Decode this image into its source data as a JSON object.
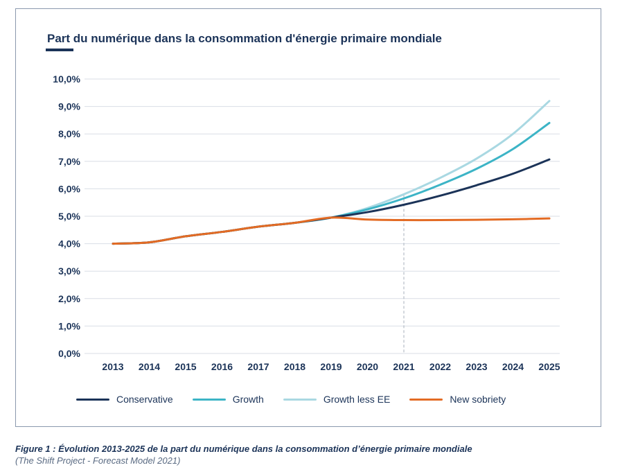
{
  "chart_data": {
    "type": "line",
    "title": "Part du numérique dans la consommation d'énergie primaire mondiale",
    "xlabel": "",
    "ylabel": "",
    "x": [
      "2013",
      "2014",
      "2015",
      "2016",
      "2017",
      "2018",
      "2019",
      "2020",
      "2021",
      "2022",
      "2023",
      "2024",
      "2025"
    ],
    "yticks": [
      "0,0%",
      "1,0%",
      "2,0%",
      "3,0%",
      "4,0%",
      "5,0%",
      "6,0%",
      "7,0%",
      "8,0%",
      "9,0%",
      "10,0%"
    ],
    "ylim": [
      0,
      10
    ],
    "grid": true,
    "reference_line_x": "2021",
    "legend_position": "bottom",
    "series": [
      {
        "name": "Growth less EE",
        "color": "#a9d8e2",
        "values": [
          4.0,
          4.05,
          4.27,
          4.43,
          4.62,
          4.76,
          4.95,
          5.3,
          5.8,
          6.4,
          7.1,
          8.0,
          9.2
        ]
      },
      {
        "name": "Growth",
        "color": "#3cb4c6",
        "values": [
          4.0,
          4.05,
          4.27,
          4.43,
          4.62,
          4.76,
          4.95,
          5.25,
          5.65,
          6.15,
          6.73,
          7.45,
          8.4
        ]
      },
      {
        "name": "Conservative",
        "color": "#1b3358",
        "values": [
          4.0,
          4.05,
          4.27,
          4.43,
          4.62,
          4.76,
          4.95,
          5.15,
          5.42,
          5.75,
          6.13,
          6.55,
          7.07
        ]
      },
      {
        "name": "New sobriety",
        "color": "#e36b24",
        "values": [
          4.0,
          4.05,
          4.27,
          4.43,
          4.62,
          4.76,
          4.95,
          4.88,
          4.86,
          4.86,
          4.87,
          4.89,
          4.92
        ]
      }
    ],
    "legend": [
      {
        "label": "Conservative",
        "color": "#1b3358"
      },
      {
        "label": "Growth",
        "color": "#3cb4c6"
      },
      {
        "label": "Growth less EE",
        "color": "#a9d8e2"
      },
      {
        "label": "New sobriety",
        "color": "#e36b24"
      }
    ]
  },
  "caption": "Figure 1 : Évolution 2013-2025 de la part du numérique dans la consommation d’énergie primaire mondiale",
  "source": "(The Shift Project - Forecast Model 2021)"
}
